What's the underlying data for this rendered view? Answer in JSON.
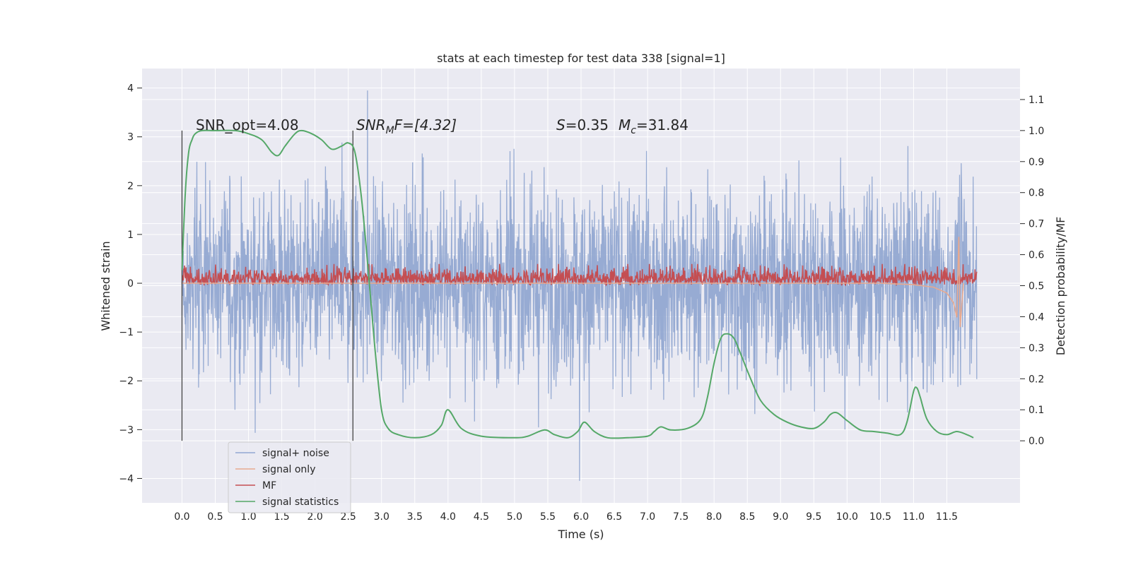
{
  "chart_data": {
    "type": "line",
    "title": "stats at each timestep for test data 338 [signal=1]",
    "xlabel": "Time (s)",
    "ylabel_left": "Whitened strain",
    "ylabel_right": "Detection probability/MF",
    "xlim": [
      -0.6,
      12.6
    ],
    "ylim_left": [
      -4.5,
      4.4
    ],
    "ylim_right": [
      -0.2,
      1.2
    ],
    "x_ticks": [
      0.0,
      0.5,
      1.0,
      1.5,
      2.0,
      2.5,
      3.0,
      3.5,
      4.0,
      4.5,
      5.0,
      5.5,
      6.0,
      6.5,
      7.0,
      7.5,
      8.0,
      8.5,
      9.0,
      9.5,
      10.0,
      10.5,
      11.0,
      11.5
    ],
    "x_tick_labels": [
      "0.0",
      "0.5",
      "1.0",
      "1.5",
      "2.0",
      "2.5",
      "3.0",
      "3.5",
      "4.0",
      "4.5",
      "5.0",
      "5.5",
      "6.0",
      "6.5",
      "7.0",
      "7.5",
      "8.0",
      "8.5",
      "9.0",
      "9.5",
      "10.0",
      "10.5",
      "11.0",
      "11.5"
    ],
    "y_left_ticks": [
      -4,
      -3,
      -2,
      -1,
      0,
      1,
      2,
      3,
      4
    ],
    "y_left_tick_labels": [
      "−4",
      "−3",
      "−2",
      "−1",
      "0",
      "1",
      "2",
      "3",
      "4"
    ],
    "y_right_ticks": [
      0.0,
      0.1,
      0.2,
      0.3,
      0.4,
      0.5,
      0.6,
      0.7,
      0.8,
      0.9,
      1.0,
      1.1
    ],
    "y_right_tick_labels": [
      "0.0",
      "0.1",
      "0.2",
      "0.3",
      "0.4",
      "0.5",
      "0.6",
      "0.7",
      "0.8",
      "0.9",
      "1.0",
      "1.1"
    ],
    "grid": true,
    "legend_position": "lower-left",
    "legend": [
      {
        "label": "signal+ noise",
        "color": "#92a8d1"
      },
      {
        "label": "signal only",
        "color": "#e8a98f"
      },
      {
        "label": "MF",
        "color": "#c44e52"
      },
      {
        "label": "signal statistics",
        "color": "#55a868"
      }
    ],
    "annotations": {
      "snr_opt": "SNR_opt=4.08",
      "snr_mf": "SNR",
      "snr_mf_sub": "M",
      "snr_mf_rest": "F=[4.32]",
      "spin_var": "S",
      "spin_rest": "=0.35",
      "mc_var": "M",
      "mc_sub": "c",
      "mc_rest": "=31.84"
    },
    "vertical_markers": [
      0.0,
      2.57
    ],
    "series": [
      {
        "name": "signal+ noise",
        "axis": "left",
        "color": "#92a8d1",
        "x_range": [
          0.0,
          11.95
        ],
        "amplitude_rms": 1.0,
        "peak_max": 3.95,
        "peak_min": -4.05
      },
      {
        "name": "signal only",
        "axis": "left",
        "color": "#e8a98f",
        "x": [
          0.0,
          10.5,
          11.0,
          11.3,
          11.5,
          11.6,
          11.65,
          11.68,
          11.7,
          11.75
        ],
        "y": [
          0.0,
          0.0,
          -0.03,
          -0.08,
          -0.2,
          -0.4,
          -0.7,
          0.95,
          -0.9,
          0.0
        ]
      },
      {
        "name": "MF",
        "axis": "right",
        "color": "#c44e52",
        "x_range": [
          0.0,
          11.95
        ],
        "baseline": 0.5,
        "typical_max": 0.57,
        "peak_max": 0.6
      },
      {
        "name": "signal statistics",
        "axis": "right",
        "color": "#55a868",
        "x": [
          0.0,
          0.05,
          0.1,
          0.15,
          0.2,
          0.3,
          0.5,
          0.8,
          1.0,
          1.2,
          1.35,
          1.45,
          1.55,
          1.7,
          1.8,
          1.95,
          2.1,
          2.25,
          2.4,
          2.5,
          2.6,
          2.7,
          2.8,
          2.9,
          3.0,
          3.1,
          3.25,
          3.5,
          3.75,
          3.9,
          4.0,
          4.2,
          4.5,
          5.0,
          5.2,
          5.45,
          5.6,
          5.8,
          5.95,
          6.05,
          6.2,
          6.4,
          6.7,
          7.0,
          7.1,
          7.2,
          7.35,
          7.6,
          7.8,
          7.9,
          8.0,
          8.1,
          8.2,
          8.3,
          8.4,
          8.55,
          8.7,
          8.9,
          9.1,
          9.3,
          9.5,
          9.65,
          9.75,
          9.85,
          10.0,
          10.2,
          10.4,
          10.6,
          10.8,
          10.9,
          11.0,
          11.05,
          11.1,
          11.2,
          11.35,
          11.5,
          11.65,
          11.8,
          11.9
        ],
        "y": [
          0.55,
          0.8,
          0.93,
          0.97,
          0.99,
          1.0,
          1.0,
          1.0,
          0.99,
          0.97,
          0.93,
          0.92,
          0.95,
          0.99,
          1.0,
          0.99,
          0.97,
          0.94,
          0.95,
          0.96,
          0.93,
          0.78,
          0.55,
          0.3,
          0.1,
          0.04,
          0.02,
          0.01,
          0.02,
          0.05,
          0.1,
          0.04,
          0.015,
          0.01,
          0.015,
          0.035,
          0.02,
          0.01,
          0.03,
          0.06,
          0.03,
          0.01,
          0.01,
          0.015,
          0.03,
          0.045,
          0.035,
          0.04,
          0.07,
          0.14,
          0.25,
          0.33,
          0.345,
          0.33,
          0.28,
          0.2,
          0.13,
          0.085,
          0.06,
          0.045,
          0.04,
          0.06,
          0.085,
          0.09,
          0.065,
          0.035,
          0.03,
          0.025,
          0.02,
          0.06,
          0.16,
          0.17,
          0.14,
          0.07,
          0.03,
          0.02,
          0.03,
          0.02,
          0.01
        ]
      }
    ]
  }
}
